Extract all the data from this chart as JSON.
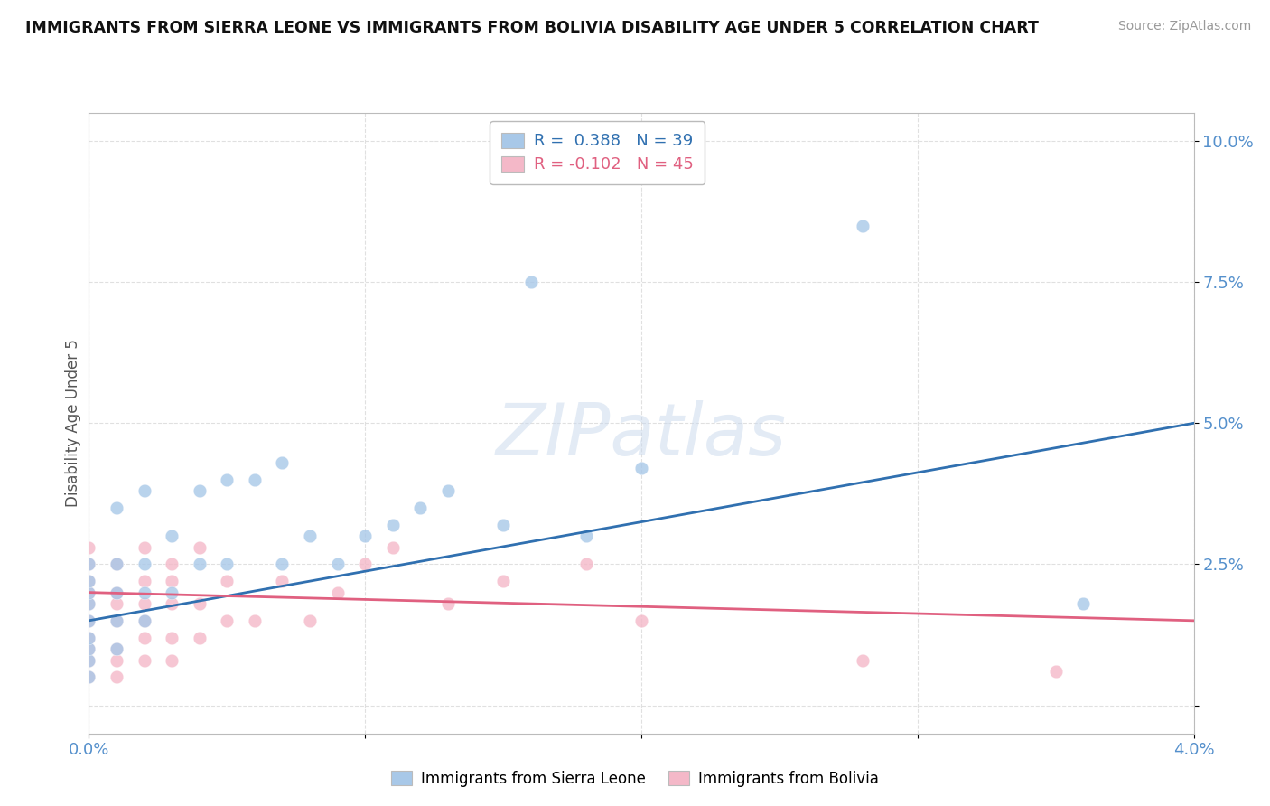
{
  "title": "IMMIGRANTS FROM SIERRA LEONE VS IMMIGRANTS FROM BOLIVIA DISABILITY AGE UNDER 5 CORRELATION CHART",
  "source": "Source: ZipAtlas.com",
  "ylabel": "Disability Age Under 5",
  "xmin": 0.0,
  "xmax": 0.04,
  "ymin": -0.005,
  "ymax": 0.105,
  "yticks": [
    0.0,
    0.025,
    0.05,
    0.075,
    0.1
  ],
  "ytick_labels": [
    "",
    "2.5%",
    "5.0%",
    "7.5%",
    "10.0%"
  ],
  "xticks": [
    0.0,
    0.01,
    0.02,
    0.03,
    0.04
  ],
  "xtick_labels": [
    "0.0%",
    "",
    "",
    "",
    "4.0%"
  ],
  "legend_r1": "R =  0.388",
  "legend_n1": "N = 39",
  "legend_r2": "R = -0.102",
  "legend_n2": "N = 45",
  "color_blue": "#a8c8e8",
  "color_pink": "#f4b8c8",
  "color_blue_line": "#3070b0",
  "color_pink_line": "#e06080",
  "watermark": "ZIPatlas",
  "sl_x": [
    0.0,
    0.0,
    0.0,
    0.0,
    0.0,
    0.0,
    0.0,
    0.0,
    0.0,
    0.001,
    0.001,
    0.001,
    0.001,
    0.001,
    0.002,
    0.002,
    0.002,
    0.002,
    0.003,
    0.003,
    0.004,
    0.004,
    0.005,
    0.005,
    0.006,
    0.007,
    0.007,
    0.008,
    0.009,
    0.01,
    0.011,
    0.012,
    0.013,
    0.015,
    0.016,
    0.018,
    0.02,
    0.028,
    0.036
  ],
  "sl_y": [
    0.005,
    0.008,
    0.01,
    0.012,
    0.015,
    0.018,
    0.02,
    0.022,
    0.025,
    0.01,
    0.015,
    0.02,
    0.025,
    0.035,
    0.015,
    0.02,
    0.025,
    0.038,
    0.02,
    0.03,
    0.025,
    0.038,
    0.025,
    0.04,
    0.04,
    0.025,
    0.043,
    0.03,
    0.025,
    0.03,
    0.032,
    0.035,
    0.038,
    0.032,
    0.075,
    0.03,
    0.042,
    0.085,
    0.018
  ],
  "bo_x": [
    0.0,
    0.0,
    0.0,
    0.0,
    0.0,
    0.0,
    0.0,
    0.0,
    0.0,
    0.0,
    0.001,
    0.001,
    0.001,
    0.001,
    0.001,
    0.001,
    0.001,
    0.002,
    0.002,
    0.002,
    0.002,
    0.002,
    0.002,
    0.003,
    0.003,
    0.003,
    0.003,
    0.003,
    0.004,
    0.004,
    0.004,
    0.005,
    0.005,
    0.006,
    0.007,
    0.008,
    0.009,
    0.01,
    0.011,
    0.013,
    0.015,
    0.018,
    0.02,
    0.028,
    0.035
  ],
  "bo_y": [
    0.005,
    0.008,
    0.01,
    0.012,
    0.015,
    0.018,
    0.02,
    0.022,
    0.025,
    0.028,
    0.005,
    0.008,
    0.01,
    0.015,
    0.018,
    0.02,
    0.025,
    0.008,
    0.012,
    0.015,
    0.018,
    0.022,
    0.028,
    0.008,
    0.012,
    0.018,
    0.022,
    0.025,
    0.012,
    0.018,
    0.028,
    0.015,
    0.022,
    0.015,
    0.022,
    0.015,
    0.02,
    0.025,
    0.028,
    0.018,
    0.022,
    0.025,
    0.015,
    0.008,
    0.006
  ],
  "blue_line_x0": 0.0,
  "blue_line_y0": 0.015,
  "blue_line_x1": 0.04,
  "blue_line_y1": 0.05,
  "pink_line_x0": 0.0,
  "pink_line_y0": 0.02,
  "pink_line_x1": 0.04,
  "pink_line_y1": 0.015
}
